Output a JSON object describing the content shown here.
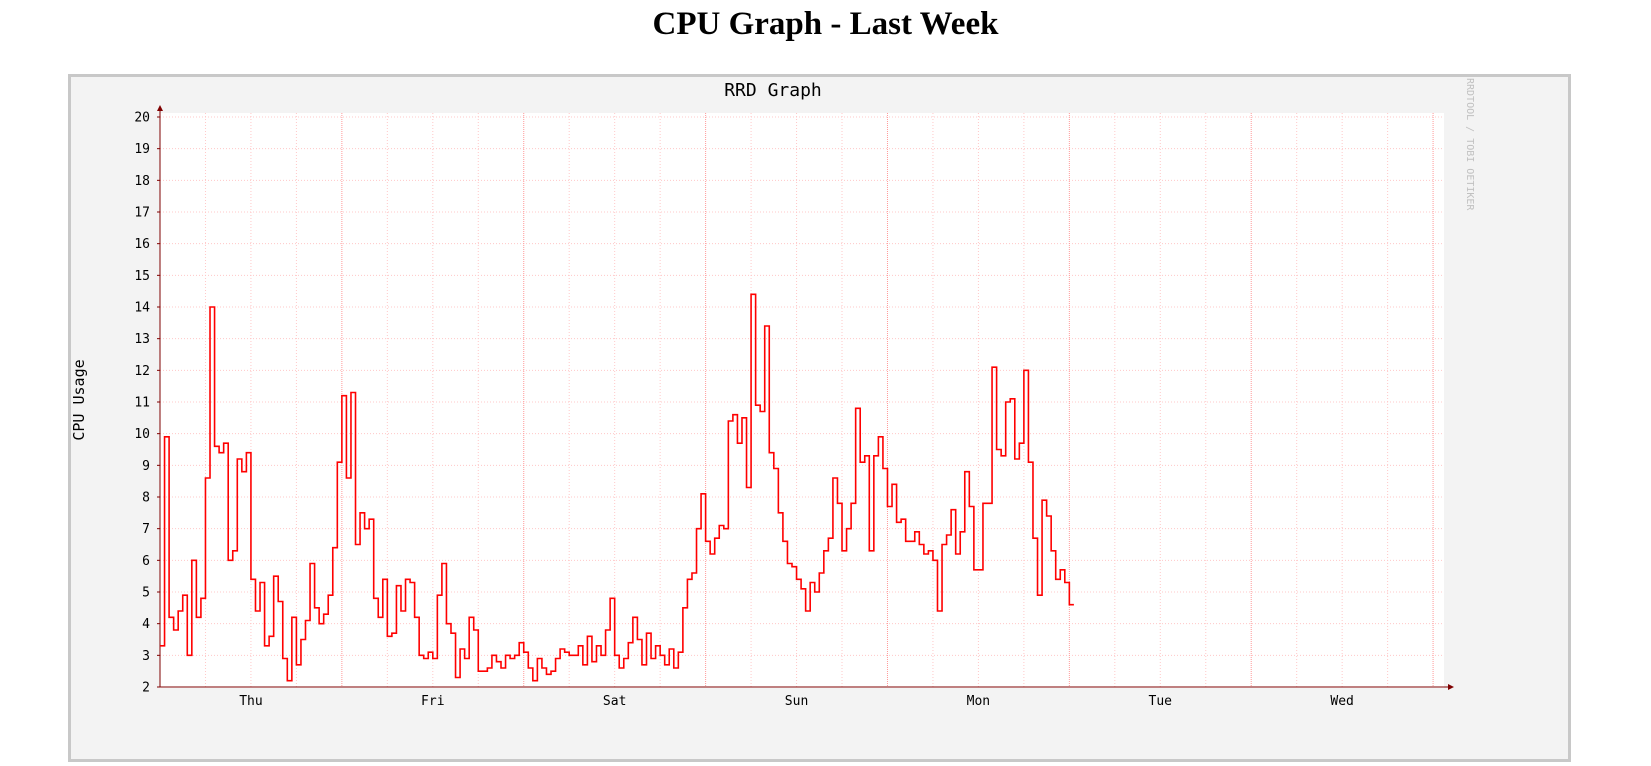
{
  "page": {
    "title": "CPU Graph - Last Week"
  },
  "graph": {
    "watermark": "RRDTOOL / TOBI OETIKER"
  },
  "colors": {
    "line": "#ff0000",
    "minor_grid": "#ffc8c8",
    "major_grid": "#ff9999",
    "axis": "#7f0000",
    "background": "#f3f3f3",
    "plot_bg": "#ffffff"
  },
  "chart_data": {
    "type": "line",
    "title": "RRD Graph",
    "xlabel": "",
    "ylabel": "CPU Usage",
    "ylim": [
      2,
      20
    ],
    "yticks": [
      2,
      3,
      4,
      5,
      6,
      7,
      8,
      9,
      10,
      11,
      12,
      13,
      14,
      15,
      16,
      17,
      18,
      19,
      20
    ],
    "xlim": [
      0,
      7.06
    ],
    "x_unit": "days",
    "day_labels": [
      {
        "label": "Thu",
        "x": 0.5
      },
      {
        "label": "Fri",
        "x": 1.5
      },
      {
        "label": "Sat",
        "x": 2.5
      },
      {
        "label": "Sun",
        "x": 3.5
      },
      {
        "label": "Mon",
        "x": 4.5
      },
      {
        "label": "Tue",
        "x": 5.5
      },
      {
        "label": "Wed",
        "x": 6.5
      }
    ],
    "grid": true,
    "legend": "none",
    "step": 0.025,
    "series": [
      {
        "values": [
          3.3,
          9.9,
          4.2,
          3.8,
          4.4,
          4.9,
          3.0,
          6.0,
          4.2,
          4.8,
          8.6,
          14.0,
          9.6,
          9.4,
          9.7,
          6.0,
          6.3,
          9.2,
          8.8,
          9.4,
          5.4,
          4.4,
          5.3,
          3.3,
          3.6,
          5.5,
          4.7,
          2.9,
          2.2,
          4.2,
          2.7,
          3.5,
          4.1,
          5.9,
          4.5,
          4.0,
          4.3,
          4.9,
          6.4,
          9.1,
          11.2,
          8.6,
          11.3,
          6.5,
          7.5,
          7.0,
          7.3,
          4.8,
          4.2,
          5.4,
          3.6,
          3.7,
          5.2,
          4.4,
          5.4,
          5.3,
          4.2,
          3.0,
          2.9,
          3.1,
          2.9,
          4.9,
          5.9,
          4.0,
          3.7,
          2.3,
          3.2,
          2.9,
          4.2,
          3.8,
          2.5,
          2.5,
          2.6,
          3.0,
          2.8,
          2.6,
          3.0,
          2.9,
          3.0,
          3.4,
          3.1,
          2.6,
          2.2,
          2.9,
          2.6,
          2.4,
          2.5,
          2.9,
          3.2,
          3.1,
          3.0,
          3.0,
          3.3,
          2.7,
          3.6,
          2.8,
          3.3,
          3.0,
          3.8,
          4.8,
          3.0,
          2.6,
          2.9,
          3.4,
          4.2,
          3.5,
          2.7,
          3.7,
          2.9,
          3.3,
          3.0,
          2.7,
          3.2,
          2.6,
          3.1,
          4.5,
          5.4,
          5.6,
          7.0,
          8.1,
          6.6,
          6.2,
          6.7,
          7.1,
          7.0,
          10.4,
          10.6,
          9.7,
          10.5,
          8.3,
          14.4,
          10.9,
          10.7,
          13.4,
          9.4,
          8.9,
          7.5,
          6.6,
          5.9,
          5.8,
          5.4,
          5.1,
          4.4,
          5.3,
          5.0,
          5.6,
          6.3,
          6.7,
          8.6,
          7.8,
          6.3,
          7.0,
          7.8,
          10.8,
          9.1,
          9.3,
          6.3,
          9.3,
          9.9,
          8.9,
          7.7,
          8.4,
          7.2,
          7.3,
          6.6,
          6.6,
          6.9,
          6.5,
          6.2,
          6.3,
          6.0,
          4.4,
          6.5,
          6.8,
          7.6,
          6.2,
          6.9,
          8.8,
          7.7,
          5.7,
          5.7,
          7.8,
          7.8,
          12.1,
          9.5,
          9.3,
          11.0,
          11.1,
          9.2,
          9.7,
          12.0,
          9.1,
          6.7,
          4.9,
          7.9,
          7.4,
          6.3,
          5.4,
          5.7,
          5.3,
          4.6
        ]
      }
    ]
  }
}
